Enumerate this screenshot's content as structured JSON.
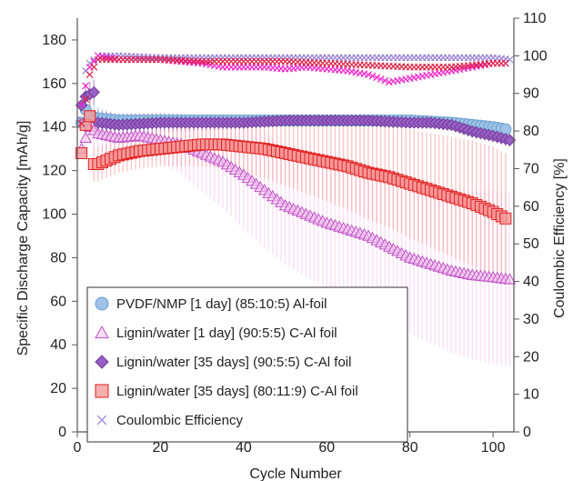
{
  "chart_data": {
    "type": "scatter",
    "xlabel": "Cycle Number",
    "ylabel_left": "Specific Discharge Capacity [mAh/g]",
    "ylabel_right": "Coulombic Efficiency [%]",
    "xlim": [
      0,
      105
    ],
    "ylim_left": [
      0,
      190
    ],
    "ylim_right": [
      0,
      110
    ],
    "x_ticks": [
      0,
      20,
      40,
      60,
      80,
      100
    ],
    "y_ticks_left": [
      0,
      20,
      40,
      60,
      80,
      100,
      120,
      140,
      160,
      180
    ],
    "y_ticks_right": [
      0,
      10,
      20,
      30,
      40,
      50,
      60,
      70,
      80,
      90,
      100,
      110
    ],
    "grid": false,
    "legend_position": "bottom-left",
    "series": [
      {
        "name": "PVDF/NMP [1 day] (85:10:5) Al-foil",
        "axis": "left",
        "marker": "circle",
        "color": "#9ec3e6",
        "edge": "#6a9fd0",
        "points": [
          [
            1,
            142
          ],
          [
            2,
            148
          ],
          [
            3,
            145
          ],
          [
            5,
            144
          ],
          [
            10,
            143
          ],
          [
            20,
            143
          ],
          [
            30,
            143
          ],
          [
            40,
            143
          ],
          [
            50,
            143
          ],
          [
            60,
            143
          ],
          [
            70,
            143
          ],
          [
            80,
            143
          ],
          [
            90,
            142
          ],
          [
            95,
            141
          ],
          [
            100,
            140
          ],
          [
            103,
            139
          ]
        ],
        "error": [
          [
            1,
            8
          ],
          [
            10,
            2
          ],
          [
            50,
            2
          ],
          [
            100,
            2
          ]
        ]
      },
      {
        "name": "Lignin/water [1 day] (90:5:5) C-Al foil",
        "axis": "left",
        "marker": "triangle",
        "color": "#f3c8f0",
        "edge": "#c050c8",
        "points": [
          [
            1,
            130
          ],
          [
            3,
            140
          ],
          [
            5,
            137
          ],
          [
            10,
            135
          ],
          [
            15,
            136
          ],
          [
            20,
            134
          ],
          [
            25,
            132
          ],
          [
            30,
            128
          ],
          [
            35,
            124
          ],
          [
            40,
            118
          ],
          [
            45,
            111
          ],
          [
            50,
            104
          ],
          [
            55,
            100
          ],
          [
            60,
            96
          ],
          [
            65,
            93
          ],
          [
            70,
            90
          ],
          [
            75,
            85
          ],
          [
            80,
            80
          ],
          [
            85,
            77
          ],
          [
            90,
            74
          ],
          [
            95,
            72
          ],
          [
            100,
            71
          ],
          [
            104,
            70
          ]
        ],
        "error": [
          [
            5,
            8
          ],
          [
            20,
            10
          ],
          [
            40,
            25
          ],
          [
            60,
            30
          ],
          [
            80,
            35
          ],
          [
            100,
            40
          ]
        ]
      },
      {
        "name": "Lignin/water [35 days] (90:5:5) C-Al foil",
        "axis": "left",
        "marker": "diamond",
        "color": "#9a5fc4",
        "edge": "#6f3a99",
        "points": [
          [
            1,
            150
          ],
          [
            2,
            154
          ],
          [
            4,
            156
          ],
          [
            5,
            142
          ],
          [
            10,
            141
          ],
          [
            20,
            142
          ],
          [
            30,
            142
          ],
          [
            40,
            142
          ],
          [
            50,
            143
          ],
          [
            60,
            143
          ],
          [
            70,
            143
          ],
          [
            80,
            142
          ],
          [
            85,
            142
          ],
          [
            90,
            141
          ],
          [
            95,
            138
          ],
          [
            100,
            136
          ],
          [
            104,
            134
          ]
        ],
        "error": [
          [
            1,
            6
          ],
          [
            50,
            2
          ],
          [
            100,
            3
          ]
        ]
      },
      {
        "name": "Lignin/water [35 days] (80:11:9) C-Al foil",
        "axis": "left",
        "marker": "square",
        "color": "#f59a9a",
        "edge": "#e02020",
        "points": [
          [
            1,
            128
          ],
          [
            2,
            141
          ],
          [
            3,
            145
          ],
          [
            4,
            123
          ],
          [
            5,
            123
          ],
          [
            10,
            127
          ],
          [
            15,
            129
          ],
          [
            20,
            130
          ],
          [
            25,
            131
          ],
          [
            30,
            132
          ],
          [
            35,
            132
          ],
          [
            40,
            131
          ],
          [
            45,
            130
          ],
          [
            50,
            128
          ],
          [
            55,
            126
          ],
          [
            60,
            124
          ],
          [
            65,
            122
          ],
          [
            70,
            119
          ],
          [
            75,
            117
          ],
          [
            80,
            114
          ],
          [
            85,
            111
          ],
          [
            90,
            108
          ],
          [
            95,
            105
          ],
          [
            100,
            101
          ],
          [
            103,
            98
          ]
        ],
        "error": [
          [
            5,
            8
          ],
          [
            20,
            8
          ],
          [
            40,
            12
          ],
          [
            60,
            18
          ],
          [
            80,
            25
          ],
          [
            100,
            30
          ]
        ]
      },
      {
        "name": "Coulombic Efficiency",
        "axis": "right",
        "marker": "x",
        "color": "#9a7fd6",
        "points": [
          [
            1,
            83
          ],
          [
            2,
            96
          ],
          [
            3,
            98
          ],
          [
            4,
            99
          ],
          [
            5,
            100
          ],
          [
            10,
            100
          ],
          [
            20,
            99.5
          ],
          [
            30,
            99.5
          ],
          [
            40,
            99.5
          ],
          [
            50,
            99.5
          ],
          [
            60,
            99.5
          ],
          [
            70,
            99.5
          ],
          [
            80,
            99.5
          ],
          [
            90,
            99.5
          ],
          [
            100,
            99.5
          ],
          [
            104,
            99
          ]
        ]
      },
      {
        "name": "",
        "axis": "right",
        "marker": "x",
        "color": "#ee22cc",
        "points": [
          [
            1,
            87
          ],
          [
            3,
            97
          ],
          [
            5,
            100
          ],
          [
            10,
            99
          ],
          [
            20,
            99
          ],
          [
            30,
            98
          ],
          [
            35,
            97
          ],
          [
            40,
            97
          ],
          [
            45,
            97
          ],
          [
            50,
            96.5
          ],
          [
            55,
            97
          ],
          [
            60,
            96.5
          ],
          [
            65,
            96
          ],
          [
            70,
            95
          ],
          [
            75,
            93
          ],
          [
            80,
            94
          ],
          [
            85,
            95
          ],
          [
            90,
            96
          ],
          [
            95,
            97
          ],
          [
            100,
            98
          ],
          [
            103,
            98
          ]
        ]
      },
      {
        "name": "",
        "axis": "right",
        "marker": "x",
        "color": "#dd2244",
        "points": [
          [
            1,
            82
          ],
          [
            3,
            95
          ],
          [
            5,
            99
          ],
          [
            10,
            99
          ],
          [
            20,
            99
          ],
          [
            30,
            98.5
          ],
          [
            40,
            98.5
          ],
          [
            50,
            98.5
          ],
          [
            60,
            98
          ],
          [
            70,
            97.5
          ],
          [
            80,
            97
          ],
          [
            90,
            97
          ],
          [
            95,
            97.5
          ],
          [
            100,
            98
          ],
          [
            103,
            98
          ]
        ]
      }
    ]
  }
}
